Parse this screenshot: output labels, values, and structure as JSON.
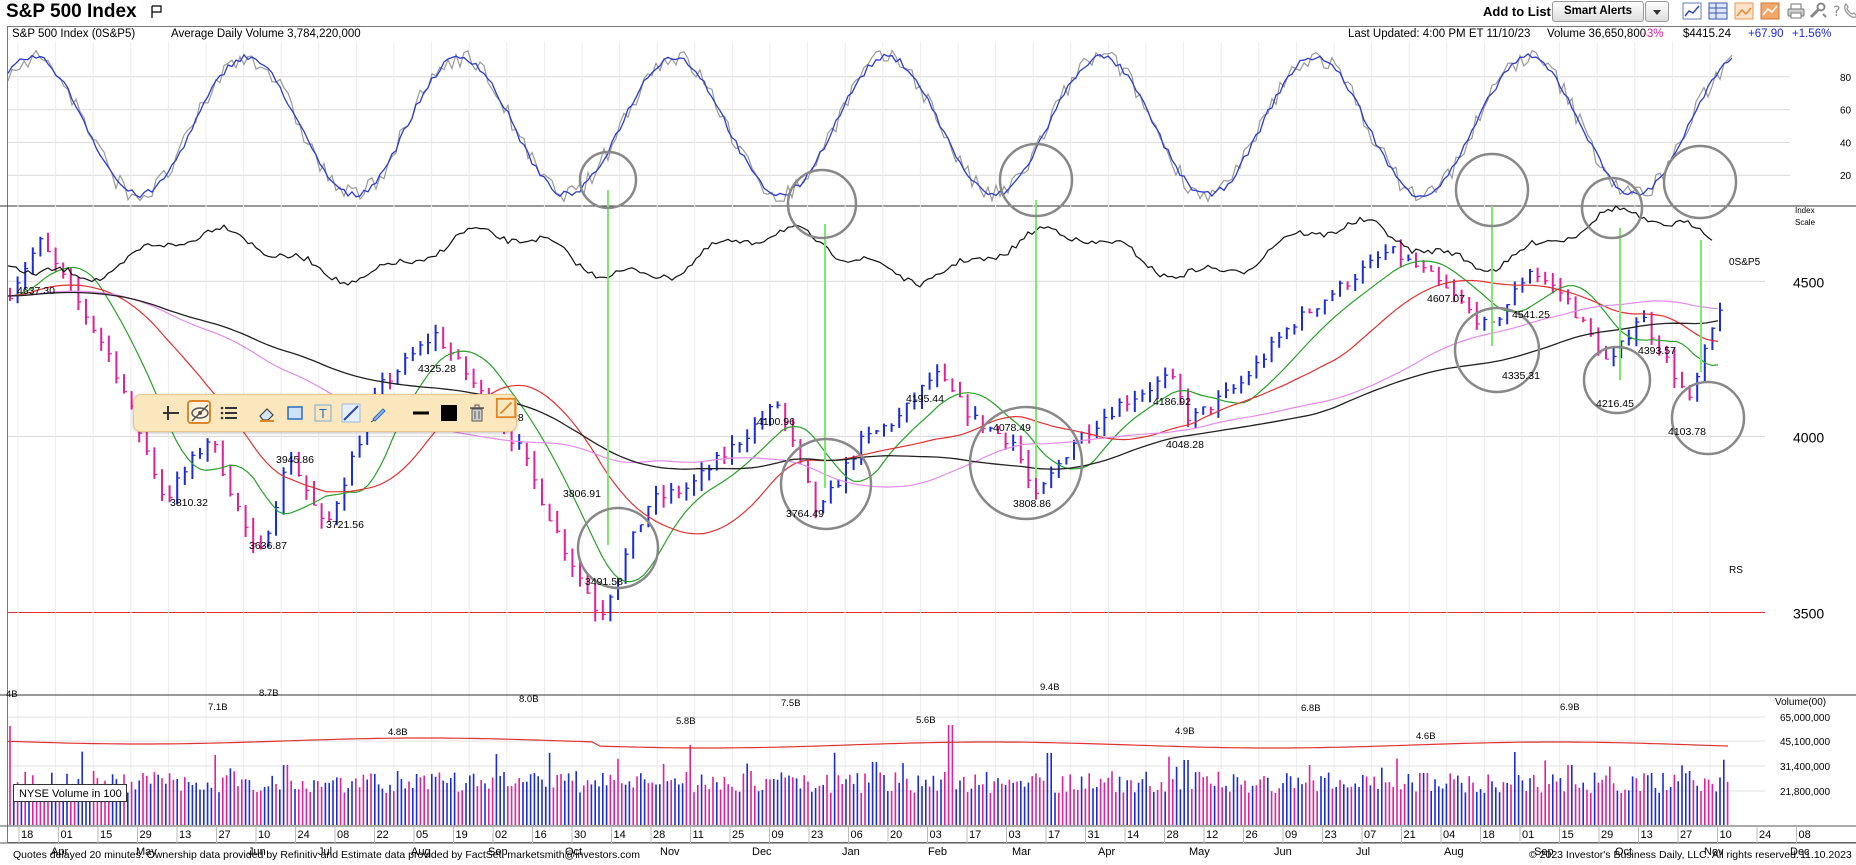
{
  "header": {
    "title": "S&P 500 Index",
    "add_to_list_label": "Add to List:",
    "smart_alerts_label": "Smart Alerts",
    "toolbar_icons": [
      "line-chart-icon",
      "table-icon",
      "image-icon",
      "chart-icon",
      "print-icon",
      "tools-icon",
      "help-icon",
      "phone-icon"
    ]
  },
  "infobar": {
    "symbol": "S&P 500 Index   (0S&P5)",
    "avg_volume": "Average Daily Volume 3,784,220,000",
    "last_updated": "Last Updated: 4:00 PM ET 11/10/23",
    "volume": "Volume 36,650,800",
    "volume_change": "-3%",
    "price": "$4415.24",
    "change": "+67.90",
    "change_pct": "+1.56%"
  },
  "footer": {
    "left": "Quotes delayed 20 minutes. Ownership data provided by Refinitiv and Estimate data provided by FactSet. marketsmith@investors.com",
    "right": "© 2023 Investor's Business Daily, LLC. All rights reserved.",
    "date": "11.10.2023"
  },
  "colors": {
    "up": "#1a2bd8",
    "down": "#e0219a",
    "ma_green": "#2aa02a",
    "ma_red": "#e03232",
    "ma_pink": "#e28be8",
    "ma_black": "#222222",
    "annotation": "#7cea6e",
    "circle": "#888888"
  },
  "chart_data": [
    {
      "type": "line",
      "panel": "stochastic",
      "yticks": [
        20,
        40,
        60,
        80
      ],
      "ylim": [
        0,
        100
      ],
      "series": []
    },
    {
      "type": "line",
      "panel": "price",
      "title": "S&P 500 Index",
      "ylabel": "Index Scale",
      "ylim": [
        3300,
        4750
      ],
      "log_scale": true,
      "yticks": [
        3500,
        4000,
        4500
      ],
      "rs_label": "RS",
      "rs_line_label": "0S&P5",
      "x_ticks": [
        "18",
        "01",
        "15",
        "29",
        "13",
        "27",
        "10",
        "24",
        "08",
        "22",
        "05",
        "19",
        "02",
        "16",
        "30",
        "14",
        "28",
        "11",
        "25",
        "09",
        "23",
        "06",
        "20",
        "03",
        "17",
        "03",
        "17",
        "31",
        "14",
        "28",
        "12",
        "26",
        "09",
        "23",
        "07",
        "21",
        "04",
        "18",
        "01",
        "15",
        "29",
        "13",
        "27",
        "10",
        "24",
        "08"
      ],
      "month_labels": [
        "Apr",
        "May",
        "Jun",
        "Jul",
        "Aug",
        "Sep",
        "Oct",
        "Nov",
        "Dec",
        "Jan",
        "Feb",
        "Mar",
        "Apr",
        "May",
        "Jun",
        "Jul",
        "Aug",
        "Sep",
        "Oct",
        "Nov",
        "Dec"
      ],
      "price_labels": [
        {
          "label": "4637.30",
          "value": 4637.3
        },
        {
          "label": "4325.28",
          "value": 4325.28
        },
        {
          "label": "3810.32",
          "value": 3810.32
        },
        {
          "label": "3945.86",
          "value": 3945.86
        },
        {
          "label": "3636.87",
          "value": 3636.87
        },
        {
          "label": "3721.56",
          "value": 3721.56
        },
        {
          "label": "3806.91",
          "value": 3806.91
        },
        {
          "label": "3491.58",
          "value": 3491.58
        },
        {
          "label": "4100.96",
          "value": 4100.96
        },
        {
          "label": "3764.49",
          "value": 3764.49
        },
        {
          "label": "4195.44",
          "value": 4195.44
        },
        {
          "label": "4078.49",
          "value": 4078.49
        },
        {
          "label": "3808.86",
          "value": 3808.86
        },
        {
          "label": "4186.92",
          "value": 4186.92
        },
        {
          "label": "4048.28",
          "value": 4048.28
        },
        {
          "label": "4607.07",
          "value": 4607.07
        },
        {
          "label": "4541.25",
          "value": 4541.25
        },
        {
          "label": "4335.31",
          "value": 4335.31
        },
        {
          "label": "4393.57",
          "value": 4393.57
        },
        {
          "label": "4216.45",
          "value": 4216.45
        },
        {
          "label": "4103.78",
          "value": 4103.78
        }
      ],
      "partial_label": "28"
    },
    {
      "type": "bar",
      "panel": "volume",
      "ylabel": "Volume(00)",
      "yticks": [
        "65,000,000",
        "45,100,000",
        "31,400,000",
        "21,800,000"
      ],
      "peak_labels": [
        "4B",
        "7.1B",
        "8.7B",
        "4.8B",
        "8.0B",
        "5.8B",
        "7.5B",
        "5.6B",
        "9.4B",
        "4.9B",
        "6.8B",
        "4.6B",
        "6.9B"
      ],
      "legend_box": "NYSE Volume in 100"
    }
  ]
}
